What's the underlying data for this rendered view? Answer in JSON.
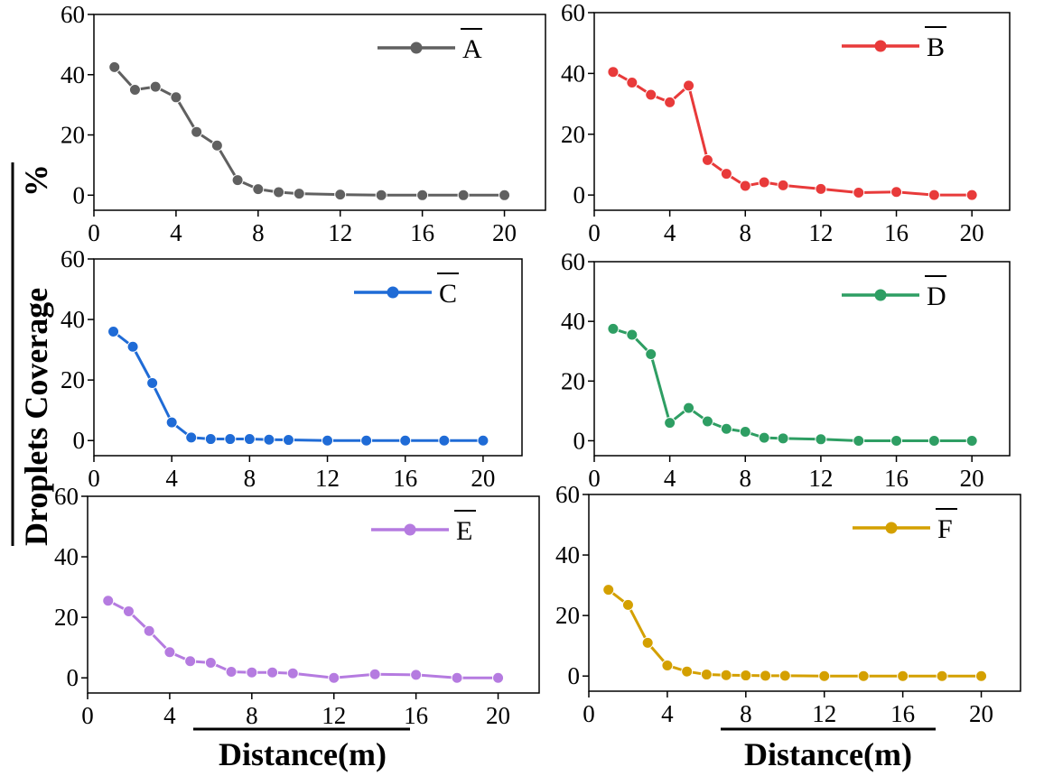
{
  "chart_data": {
    "type": "line",
    "ylabel": "Droplets Coverage %",
    "ylabel_overline_text": "Droplets Coverage",
    "ylabel_unit": "%",
    "xlabel": "Distance(m)",
    "x": [
      1,
      2,
      3,
      4,
      5,
      6,
      7,
      8,
      9,
      10,
      12,
      14,
      16,
      18,
      20
    ],
    "xticks": [
      0,
      4,
      8,
      12,
      16,
      20
    ],
    "yticks": [
      0,
      20,
      40,
      60
    ],
    "xlim": [
      0,
      22
    ],
    "ylim": [
      -5,
      60
    ],
    "legend_position": "top-right",
    "panels": [
      {
        "name": "A",
        "color": "#606060",
        "values": [
          42.5,
          35,
          36,
          32.5,
          21,
          16.5,
          5,
          2,
          1,
          0.5,
          0.2,
          0,
          0,
          0,
          0
        ]
      },
      {
        "name": "B",
        "color": "#e83a3a",
        "values": [
          40.5,
          37,
          33,
          30.5,
          36,
          11.5,
          7,
          3,
          4.2,
          3.2,
          2,
          0.8,
          1,
          0,
          0
        ]
      },
      {
        "name": "C",
        "color": "#1f6bd6",
        "values": [
          36,
          31,
          19,
          6,
          1,
          0.5,
          0.5,
          0.5,
          0.3,
          0.2,
          0,
          0,
          0,
          0,
          0
        ]
      },
      {
        "name": "D",
        "color": "#2e9e63",
        "values": [
          37.5,
          35.5,
          29,
          6,
          11,
          6.5,
          4,
          3,
          1,
          0.8,
          0.5,
          0,
          0,
          0,
          0
        ]
      },
      {
        "name": "E",
        "color": "#b57be0",
        "values": [
          25.5,
          22,
          15.5,
          8.5,
          5.5,
          5,
          2,
          1.8,
          1.8,
          1.5,
          0,
          1.2,
          1,
          0,
          0
        ]
      },
      {
        "name": "F",
        "color": "#d4a000",
        "values": [
          28.5,
          23.5,
          11,
          3.5,
          1.5,
          0.5,
          0.3,
          0.2,
          0.1,
          0.1,
          0,
          0,
          0,
          0,
          0
        ]
      }
    ]
  }
}
